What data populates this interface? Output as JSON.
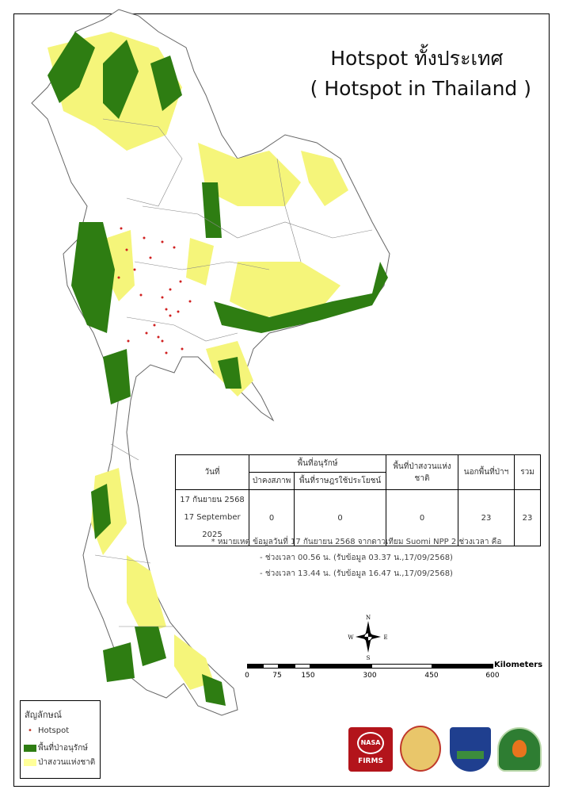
{
  "title": {
    "line1": "Hotspot ทั้งประเทศ",
    "line2": "( Hotspot in Thailand )"
  },
  "table": {
    "headers": {
      "date": "วันที่",
      "conservation": "พื้นที่อนุรักษ์",
      "intact_forest": "ป่าคงสภาพ",
      "community_use": "พื้นที่ราษฎรใช้ประโยชน์",
      "national_reserve": "พื้นที่ป่าสงวนแห่งชาติ",
      "outside_forest": "นอกพื้นที่ป่าฯ",
      "total": "รวม"
    },
    "row": {
      "date_th": "17 กันยายน 2568",
      "date_en": "17 September 2025",
      "intact_forest": "0",
      "community_use": "0",
      "national_reserve": "0",
      "outside_forest": "23",
      "total": "23"
    }
  },
  "notes": [
    "* หมายเหตุ ข้อมูลวันที่ 17 กันยายน 2568 จากดาวเทียม Suomi NPP 2 ช่วงเวลา คือ",
    "- ช่วงเวลา 00.56 น. (รับข้อมูล 03.37 น.,17/09/2568)",
    "- ช่วงเวลา 13.44 น. (รับข้อมูล 16.47 น.,17/09/2568)"
  ],
  "compass": {
    "n": "N",
    "s": "S",
    "e": "E",
    "w": "W"
  },
  "scale": {
    "unit": "Kilometers",
    "ticks": [
      "0",
      "75",
      "150",
      "300",
      "450",
      "600"
    ]
  },
  "legend": {
    "title": "สัญลักษณ์",
    "items": [
      {
        "label": "Hotspot",
        "color": "#c0392b"
      },
      {
        "label": "พื้นที่ป่าอนุรักษ์",
        "color": "#2e7d12"
      },
      {
        "label": "ป่าสงวนแห่งชาติ",
        "color": "#ffff99"
      }
    ]
  },
  "logos": {
    "nasa": "FIRMS"
  },
  "colors": {
    "conservation": "#2e7d12",
    "reserve": "#f5f57a",
    "hotspot": "#d02020",
    "border": "#777777"
  }
}
